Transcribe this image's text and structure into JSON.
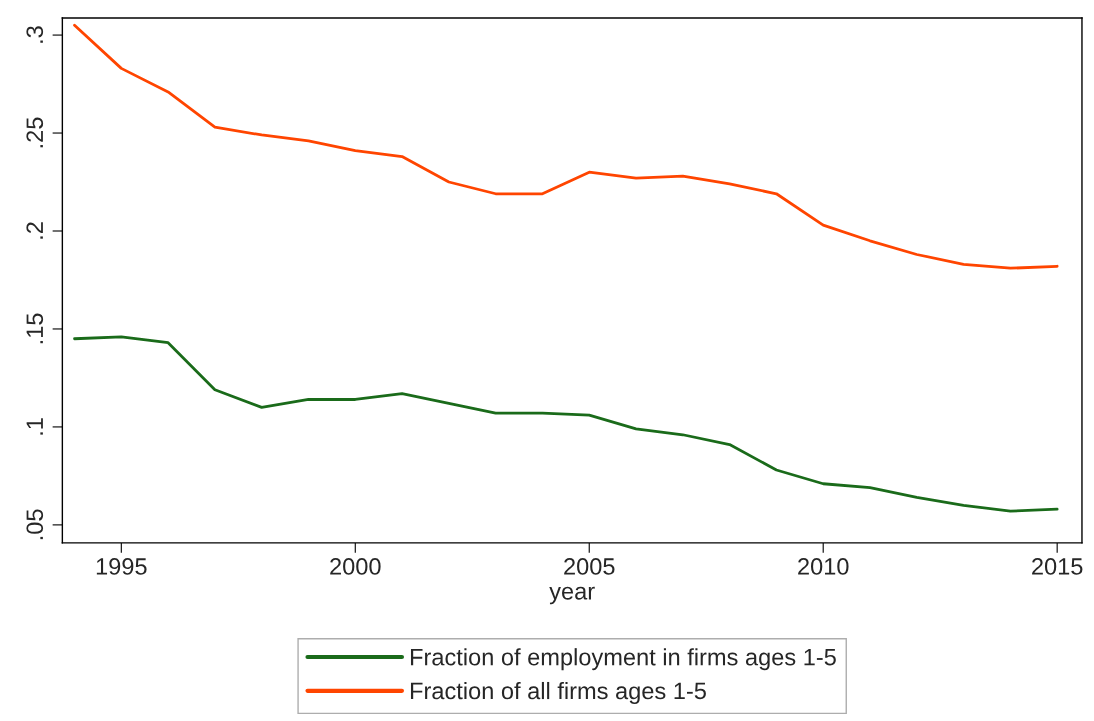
{
  "chart_data": {
    "type": "line",
    "xlabel": "year",
    "x": [
      1994,
      1995,
      1996,
      1997,
      1998,
      1999,
      2000,
      2001,
      2002,
      2003,
      2004,
      2005,
      2006,
      2007,
      2008,
      2009,
      2010,
      2011,
      2012,
      2013,
      2014,
      2015
    ],
    "series": [
      {
        "name": "Fraction of employment in firms ages 1-5",
        "color": "#1a6b1a",
        "values": [
          0.145,
          0.146,
          0.143,
          0.119,
          0.11,
          0.114,
          0.114,
          0.117,
          0.112,
          0.107,
          0.107,
          0.106,
          0.099,
          0.096,
          0.091,
          0.078,
          0.071,
          0.069,
          0.064,
          0.06,
          0.057,
          0.058
        ]
      },
      {
        "name": "Fraction of all firms ages 1-5",
        "color": "#ff4500",
        "values": [
          0.305,
          0.283,
          0.271,
          0.253,
          0.249,
          0.246,
          0.241,
          0.238,
          0.225,
          0.219,
          0.219,
          0.23,
          0.227,
          0.228,
          0.224,
          0.219,
          0.203,
          0.195,
          0.188,
          0.183,
          0.181,
          0.182
        ]
      }
    ],
    "xlim": [
      1993.74,
      2015.53
    ],
    "xticks": [
      1995,
      2000,
      2005,
      2010,
      2015
    ],
    "ylim": [
      0.0408,
      0.3087
    ],
    "yticks": [
      {
        "value": 0.05,
        "label": ".05"
      },
      {
        "value": 0.1,
        "label": ".1"
      },
      {
        "value": 0.15,
        "label": ".15"
      },
      {
        "value": 0.2,
        "label": ".2"
      },
      {
        "value": 0.25,
        "label": ".25"
      },
      {
        "value": 0.3,
        "label": ".3"
      }
    ],
    "grid": false,
    "legend": "bottom",
    "marker": "none",
    "line_style": "solid"
  }
}
